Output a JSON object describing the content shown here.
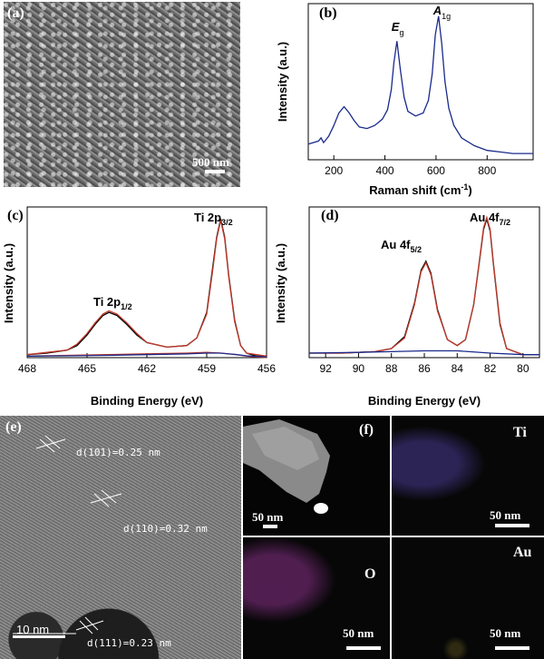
{
  "panels": {
    "a": {
      "label": "(a)",
      "scale": "500 nm"
    },
    "b": {
      "label": "(b)"
    },
    "c": {
      "label": "(c)"
    },
    "d": {
      "label": "(d)"
    },
    "e": {
      "label": "(e)",
      "scale": "10 nm",
      "d_spacings": [
        "d(101)=0.25 nm",
        "d(110)=0.32 nm",
        "d(111)=0.23 nm"
      ]
    },
    "f": {
      "label": "(f)",
      "scale": "50 nm",
      "maps": [
        {
          "element": "Ti",
          "scale": "50 nm"
        },
        {
          "element": "O",
          "scale": "50 nm"
        },
        {
          "element": "Au",
          "scale": "50 nm"
        }
      ]
    }
  },
  "chart_data": [
    {
      "id": "b",
      "type": "line",
      "xlabel": "Raman shift (cm-1)",
      "ylabel": "Intensity (a.u.)",
      "xlim": [
        100,
        980
      ],
      "xticks": [
        200,
        400,
        600,
        800
      ],
      "annotations": [
        {
          "text": "Eg",
          "x": 447
        },
        {
          "text": "A1g",
          "x": 610
        }
      ],
      "series": [
        {
          "color": "#1a2a8c",
          "x": [
            100,
            140,
            150,
            160,
            180,
            200,
            220,
            240,
            260,
            280,
            300,
            330,
            360,
            390,
            410,
            425,
            435,
            447,
            460,
            475,
            490,
            520,
            550,
            570,
            585,
            597,
            610,
            622,
            635,
            650,
            670,
            700,
            750,
            800,
            850,
            900,
            950,
            980
          ],
          "y": [
            0.1,
            0.12,
            0.14,
            0.11,
            0.15,
            0.22,
            0.3,
            0.34,
            0.3,
            0.25,
            0.21,
            0.2,
            0.22,
            0.26,
            0.32,
            0.45,
            0.62,
            0.76,
            0.58,
            0.4,
            0.31,
            0.28,
            0.3,
            0.38,
            0.55,
            0.8,
            0.92,
            0.75,
            0.5,
            0.33,
            0.22,
            0.14,
            0.09,
            0.06,
            0.05,
            0.04,
            0.04,
            0.04
          ]
        }
      ]
    },
    {
      "id": "c",
      "type": "line",
      "xlabel": "Binding Energy (eV)",
      "ylabel": "Intensity (a.u.)",
      "xlim": [
        468,
        456
      ],
      "xticks": [
        468,
        465,
        462,
        459,
        456
      ],
      "annotations": [
        {
          "text": "Ti 2p1/2",
          "x": 464.0
        },
        {
          "text": "Ti 2p3/2",
          "x": 458.3
        }
      ],
      "series": [
        {
          "color": "#000000",
          "x": [
            468,
            467,
            466,
            465.5,
            465,
            464.6,
            464.2,
            463.9,
            463.5,
            463.0,
            462.5,
            462,
            461,
            460,
            459.5,
            459.0,
            458.7,
            458.5,
            458.3,
            458.1,
            457.9,
            457.6,
            457.3,
            457,
            456.5,
            456
          ],
          "y": [
            0.02,
            0.03,
            0.05,
            0.08,
            0.15,
            0.22,
            0.28,
            0.3,
            0.28,
            0.22,
            0.15,
            0.1,
            0.07,
            0.08,
            0.13,
            0.3,
            0.6,
            0.8,
            0.92,
            0.8,
            0.55,
            0.25,
            0.08,
            0.03,
            0.01,
            0.01
          ]
        },
        {
          "color": "#c0392b",
          "x": [
            468,
            466,
            465.5,
            465,
            464.6,
            464.2,
            463.9,
            463.5,
            463.0,
            462.5,
            462,
            461,
            460,
            459.5,
            459.0,
            458.7,
            458.5,
            458.3,
            458.1,
            457.9,
            457.6,
            457.3,
            457,
            456
          ],
          "y": [
            0.02,
            0.05,
            0.09,
            0.16,
            0.23,
            0.29,
            0.31,
            0.29,
            0.23,
            0.16,
            0.1,
            0.07,
            0.08,
            0.13,
            0.29,
            0.58,
            0.79,
            0.91,
            0.79,
            0.54,
            0.24,
            0.08,
            0.03,
            0.01
          ]
        },
        {
          "color": "#c0392b",
          "x": [
            468,
            466,
            464,
            462,
            460,
            459,
            458.3,
            457.5,
            457,
            456
          ],
          "y": [
            0.01,
            0.015,
            0.02,
            0.025,
            0.03,
            0.035,
            0.03,
            0.02,
            0.01,
            0.0
          ]
        },
        {
          "color": "#1a2a8c",
          "x": [
            468,
            466,
            464,
            462,
            460,
            459,
            458.3,
            457.5,
            457,
            456
          ],
          "y": [
            0.01,
            0.012,
            0.015,
            0.02,
            0.025,
            0.03,
            0.03,
            0.02,
            0.012,
            0.005
          ]
        }
      ]
    },
    {
      "id": "d",
      "type": "line",
      "xlabel": "Binding Energy (eV)",
      "ylabel": "Intensity (a.u.)",
      "xlim": [
        93,
        79
      ],
      "xticks": [
        92,
        90,
        88,
        86,
        84,
        82,
        80
      ],
      "annotations": [
        {
          "text": "Au 4f5/2",
          "x": 85.9
        },
        {
          "text": "Au 4f7/2",
          "x": 82.2
        }
      ],
      "series": [
        {
          "color": "#000000",
          "x": [
            93,
            91,
            89,
            88,
            87.2,
            86.6,
            86.2,
            85.9,
            85.6,
            85.2,
            84.6,
            84,
            83.5,
            83.0,
            82.6,
            82.4,
            82.2,
            82.0,
            81.8,
            81.4,
            81,
            80,
            79
          ],
          "y": [
            0.03,
            0.03,
            0.04,
            0.06,
            0.14,
            0.36,
            0.58,
            0.64,
            0.56,
            0.32,
            0.12,
            0.08,
            0.12,
            0.35,
            0.68,
            0.85,
            0.92,
            0.84,
            0.62,
            0.22,
            0.06,
            0.02,
            0.02
          ]
        },
        {
          "color": "#c0392b",
          "x": [
            93,
            91,
            89,
            88,
            87.2,
            86.6,
            86.2,
            85.9,
            85.6,
            85.2,
            84.6,
            84,
            83.5,
            83.0,
            82.6,
            82.4,
            82.2,
            82.0,
            81.8,
            81.4,
            81,
            80,
            79
          ],
          "y": [
            0.03,
            0.03,
            0.04,
            0.06,
            0.13,
            0.35,
            0.57,
            0.63,
            0.55,
            0.31,
            0.12,
            0.08,
            0.12,
            0.35,
            0.69,
            0.86,
            0.93,
            0.85,
            0.63,
            0.23,
            0.06,
            0.02,
            0.02
          ]
        },
        {
          "color": "#1a2a8c",
          "x": [
            93,
            90,
            88,
            86,
            84,
            82,
            80,
            79
          ],
          "y": [
            0.03,
            0.035,
            0.04,
            0.045,
            0.045,
            0.03,
            0.02,
            0.02
          ]
        }
      ]
    }
  ]
}
